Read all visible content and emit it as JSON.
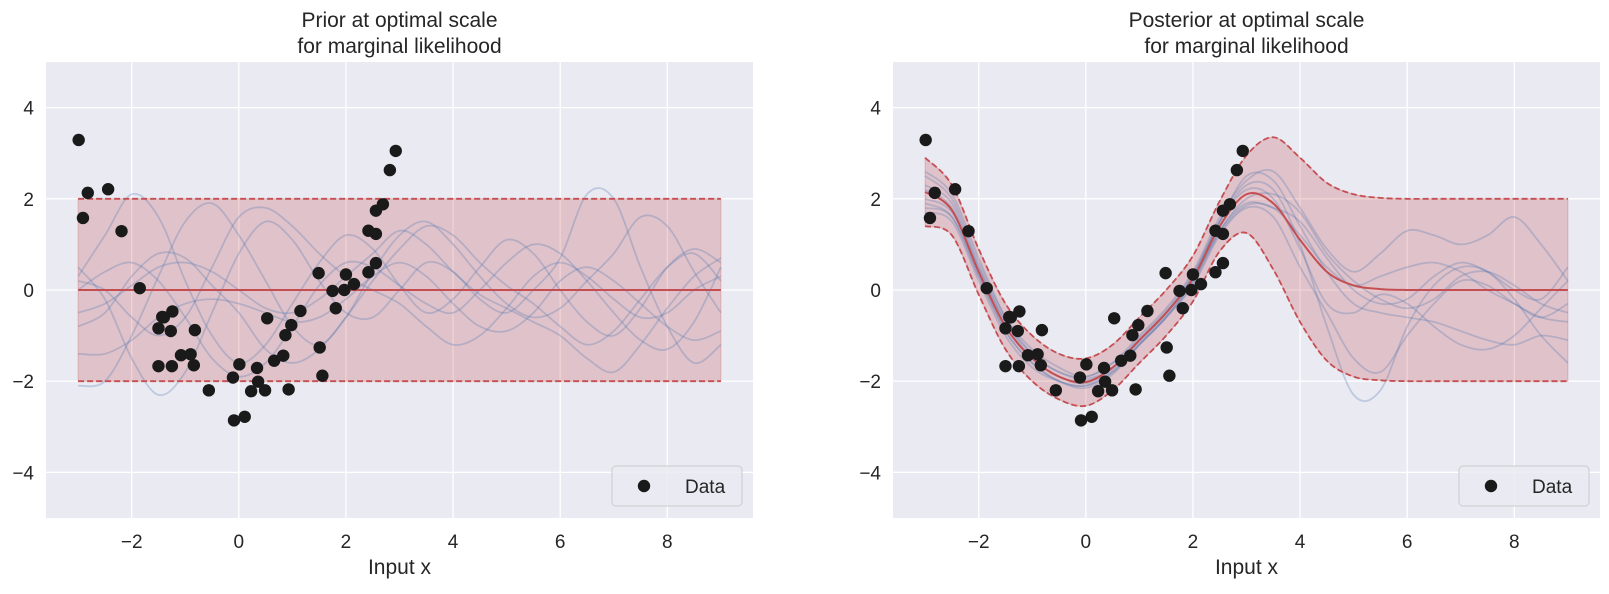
{
  "chart_data": [
    {
      "type": "line",
      "title_lines": [
        "Prior at optimal scale",
        "for marginal likelihood"
      ],
      "xlabel": "Input x",
      "ylabel": "",
      "xlim": [
        -3.6,
        9.6
      ],
      "ylim": [
        -5,
        5
      ],
      "xticks": [
        -2,
        0,
        2,
        4,
        6,
        8
      ],
      "xtick_labels": [
        "−2",
        "0",
        "2",
        "4",
        "6",
        "8"
      ],
      "yticks": [
        -4,
        -2,
        0,
        2,
        4
      ],
      "ytick_labels": [
        "−4",
        "−2",
        "0",
        "2",
        "4"
      ],
      "grid": true,
      "legend": {
        "placement": "lower-right",
        "entries": [
          "Data"
        ]
      },
      "colors": {
        "background": "#eaeaf2",
        "mean": "#c44e52",
        "band": "#c44e52",
        "samples": "#4c72b0",
        "data": "#1a1a1a"
      },
      "grid_x": [
        -3,
        -2.5,
        -2,
        -1.5,
        -1,
        -0.5,
        0,
        0.5,
        1,
        1.5,
        2,
        2.5,
        3,
        3.5,
        4,
        4.5,
        5,
        5.5,
        6,
        6.5,
        7,
        7.5,
        8,
        8.5,
        9
      ],
      "mean": [
        0,
        0,
        0,
        0,
        0,
        0,
        0,
        0,
        0,
        0,
        0,
        0,
        0,
        0,
        0,
        0,
        0,
        0,
        0,
        0,
        0,
        0,
        0,
        0,
        0
      ],
      "upper": [
        2,
        2,
        2,
        2,
        2,
        2,
        2,
        2,
        2,
        2,
        2,
        2,
        2,
        2,
        2,
        2,
        2,
        2,
        2,
        2,
        2,
        2,
        2,
        2,
        2
      ],
      "lower": [
        -2,
        -2,
        -2,
        -2,
        -2,
        -2,
        -2,
        -2,
        -2,
        -2,
        -2,
        -2,
        -2,
        -2,
        -2,
        -2,
        -2,
        -2,
        -2,
        -2,
        -2,
        -2,
        -2,
        -2,
        -2
      ],
      "samples": [
        [
          0.3,
          1.2,
          2.1,
          1.6,
          0.2,
          -1.0,
          -1.6,
          -1.2,
          -0.3,
          0.6,
          1.2,
          0.9,
          0.1,
          -0.5,
          -0.2,
          0.5,
          1.1,
          0.8,
          0.0,
          -0.7,
          -1.0,
          -0.4,
          0.5,
          0.9,
          0.6
        ],
        [
          -2.1,
          -2.0,
          -1.0,
          0.3,
          1.5,
          1.9,
          1.2,
          0.2,
          -0.8,
          -1.2,
          -0.6,
          0.4,
          1.2,
          1.5,
          1.0,
          0.3,
          -0.3,
          -0.6,
          -0.4,
          0.2,
          0.8,
          1.6,
          1.4,
          0.4,
          -0.5
        ],
        [
          0.5,
          -0.2,
          -1.5,
          -2.3,
          -1.8,
          -0.5,
          0.8,
          1.5,
          1.1,
          0.2,
          -0.5,
          -0.6,
          0.0,
          0.6,
          0.4,
          -0.2,
          -0.5,
          0.0,
          0.7,
          2.1,
          2.0,
          0.5,
          -0.8,
          -1.6,
          -1.2
        ],
        [
          -0.5,
          -0.3,
          0.1,
          0.5,
          0.6,
          0.4,
          0.0,
          -0.4,
          -0.5,
          -0.2,
          0.3,
          0.8,
          1.3,
          1.0,
          0.4,
          -0.1,
          -0.4,
          -0.7,
          -1.0,
          -1.5,
          -1.8,
          -1.2,
          -0.4,
          0.3,
          0.7
        ],
        [
          -1.4,
          -1.4,
          -1.1,
          -0.6,
          -0.3,
          -0.2,
          -0.3,
          -0.5,
          -0.7,
          -0.6,
          -0.2,
          0.3,
          0.6,
          0.3,
          -0.3,
          -0.8,
          -0.9,
          -0.5,
          0.2,
          0.5,
          0.2,
          -0.3,
          -0.8,
          -1.1,
          -0.9
        ],
        [
          0.2,
          0.0,
          -0.6,
          -1.0,
          -0.6,
          0.5,
          1.6,
          1.8,
          1.4,
          0.8,
          0.3,
          0.0,
          -0.3,
          -0.8,
          -1.2,
          -1.0,
          -0.4,
          0.3,
          0.6,
          0.3,
          -0.2,
          -0.6,
          -0.5,
          0.0,
          0.3
        ],
        [
          -0.8,
          -0.5,
          0.3,
          0.8,
          0.7,
          0.1,
          -0.5,
          -1.3,
          -1.6,
          -1.3,
          -0.6,
          0.2,
          0.9,
          1.4,
          1.2,
          0.6,
          0.1,
          -0.3,
          -0.8,
          -1.2,
          -0.9,
          -0.2,
          0.5,
          0.8,
          0.2
        ],
        [
          0.0,
          0.4,
          0.6,
          0.2,
          -0.6,
          -1.5,
          -1.9,
          -1.6,
          -0.8,
          0.1,
          0.6,
          0.5,
          0.1,
          -0.3,
          -0.5,
          0.0,
          0.6,
          1.0,
          0.8,
          0.2,
          -0.5,
          -1.1,
          -1.3,
          -0.7,
          0.5
        ]
      ]
    },
    {
      "type": "line",
      "title_lines": [
        "Posterior at optimal scale",
        "for marginal likelihood"
      ],
      "xlabel": "Input x",
      "ylabel": "",
      "xlim": [
        -3.6,
        9.6
      ],
      "ylim": [
        -5,
        5
      ],
      "xticks": [
        -2,
        0,
        2,
        4,
        6,
        8
      ],
      "xtick_labels": [
        "−2",
        "0",
        "2",
        "4",
        "6",
        "8"
      ],
      "yticks": [
        -4,
        -2,
        0,
        2,
        4
      ],
      "ytick_labels": [
        "−4",
        "−2",
        "0",
        "2",
        "4"
      ],
      "grid": true,
      "legend": {
        "placement": "lower-right",
        "entries": [
          "Data"
        ]
      },
      "colors": {
        "background": "#eaeaf2",
        "mean": "#c44e52",
        "band": "#c44e52",
        "samples": "#4c72b0",
        "data": "#1a1a1a"
      },
      "grid_x": [
        -3,
        -2.5,
        -2,
        -1.5,
        -1,
        -0.5,
        0,
        0.5,
        1,
        1.5,
        2,
        2.5,
        3,
        3.5,
        4,
        4.5,
        5,
        5.5,
        6,
        6.5,
        7,
        7.5,
        8,
        8.5,
        9
      ],
      "mean": [
        2.15,
        1.75,
        0.4,
        -0.8,
        -1.5,
        -1.9,
        -2.02,
        -1.7,
        -1.1,
        -0.5,
        0.25,
        1.4,
        2.1,
        1.9,
        1.1,
        0.4,
        0.1,
        0.02,
        0,
        0,
        0,
        0,
        0,
        0,
        0
      ],
      "upper": [
        2.9,
        2.3,
        0.9,
        -0.3,
        -1.0,
        -1.4,
        -1.5,
        -1.2,
        -0.6,
        0.0,
        0.75,
        1.95,
        2.95,
        3.35,
        2.9,
        2.35,
        2.1,
        2.02,
        2,
        2,
        2,
        2,
        2,
        2,
        2
      ],
      "lower": [
        1.4,
        1.2,
        -0.1,
        -1.3,
        -2.0,
        -2.4,
        -2.54,
        -2.2,
        -1.6,
        -1.0,
        -0.25,
        0.85,
        1.25,
        0.45,
        -0.7,
        -1.55,
        -1.9,
        -1.98,
        -2,
        -2,
        -2,
        -2,
        -2,
        -2,
        -2
      ],
      "samples": [
        [
          2.5,
          2.0,
          0.6,
          -0.6,
          -1.3,
          -1.7,
          -1.9,
          -1.6,
          -1.0,
          -0.4,
          0.4,
          1.6,
          2.4,
          2.6,
          1.8,
          0.9,
          0.4,
          0.8,
          1.3,
          1.2,
          1.0,
          1.2,
          1.6,
          1.0,
          0.2
        ],
        [
          1.9,
          1.6,
          0.3,
          -0.9,
          -1.6,
          -2.0,
          -2.1,
          -1.8,
          -1.2,
          -0.6,
          0.1,
          1.2,
          1.8,
          1.6,
          0.5,
          -0.5,
          -1.5,
          -1.8,
          -1.0,
          -0.3,
          0.2,
          0.1,
          -0.3,
          -0.6,
          -0.7
        ],
        [
          2.2,
          1.8,
          0.5,
          -0.7,
          -1.4,
          -1.8,
          -1.9,
          -1.6,
          -1.1,
          -0.5,
          0.3,
          1.5,
          2.3,
          2.2,
          1.0,
          -0.8,
          -2.3,
          -2.2,
          -0.8,
          0.1,
          0.5,
          0.4,
          -0.2,
          -1.0,
          -1.6
        ],
        [
          2.6,
          2.1,
          0.7,
          -0.6,
          -1.4,
          -1.8,
          -1.95,
          -1.7,
          -1.1,
          -0.5,
          0.3,
          1.5,
          2.5,
          2.4,
          1.4,
          0.4,
          -0.3,
          -0.5,
          -0.6,
          -0.7,
          -0.9,
          -1.1,
          -1.2,
          -1.0,
          -1.1
        ],
        [
          1.7,
          1.5,
          0.2,
          -1.0,
          -1.7,
          -2.0,
          -2.1,
          -1.8,
          -1.2,
          -0.6,
          0.2,
          1.3,
          1.9,
          1.8,
          1.5,
          0.7,
          0.0,
          -0.3,
          -0.2,
          0.3,
          0.6,
          0.4,
          0.0,
          -0.2,
          0.5
        ],
        [
          2.0,
          1.7,
          0.4,
          -0.8,
          -1.5,
          -1.9,
          -2.05,
          -1.75,
          -1.15,
          -0.55,
          0.2,
          1.3,
          2.0,
          2.1,
          1.7,
          0.8,
          0.2,
          -0.2,
          -0.4,
          -0.2,
          0.3,
          0.4,
          0.1,
          -0.3,
          -0.5
        ],
        [
          2.3,
          1.9,
          0.5,
          -0.7,
          -1.5,
          -1.9,
          -2.0,
          -1.7,
          -1.05,
          -0.45,
          0.35,
          1.5,
          2.2,
          2.0,
          0.9,
          -0.3,
          -0.5,
          -0.1,
          -0.3,
          -0.8,
          -1.2,
          -1.3,
          -1.0,
          -0.4,
          0.2
        ],
        [
          1.8,
          1.6,
          0.3,
          -0.9,
          -1.6,
          -2.0,
          -2.15,
          -1.85,
          -1.2,
          -0.6,
          0.15,
          1.25,
          1.85,
          1.8,
          1.2,
          0.5,
          0.1,
          0.3,
          0.5,
          0.6,
          0.4,
          0.0,
          -0.3,
          -0.6,
          -0.3
        ]
      ]
    }
  ],
  "data_points": [
    [
      -2.99,
      3.29
    ],
    [
      -2.82,
      2.13
    ],
    [
      -2.44,
      2.21
    ],
    [
      -2.91,
      1.58
    ],
    [
      -2.19,
      1.29
    ],
    [
      -1.85,
      0.04
    ],
    [
      -1.43,
      -0.59
    ],
    [
      -1.4,
      -0.6
    ],
    [
      -1.24,
      -0.47
    ],
    [
      -1.5,
      -0.84
    ],
    [
      -1.27,
      -0.9
    ],
    [
      -0.82,
      -0.88
    ],
    [
      -1.08,
      -1.43
    ],
    [
      -0.9,
      -1.41
    ],
    [
      -1.5,
      -1.67
    ],
    [
      -1.25,
      -1.67
    ],
    [
      -0.84,
      -1.65
    ],
    [
      -0.56,
      -2.2
    ],
    [
      -0.11,
      -1.92
    ],
    [
      0.01,
      -1.63
    ],
    [
      -0.09,
      -2.86
    ],
    [
      0.11,
      -2.78
    ],
    [
      0.23,
      -2.22
    ],
    [
      0.36,
      -2.01
    ],
    [
      0.34,
      -1.71
    ],
    [
      0.49,
      -2.2
    ],
    [
      0.53,
      -0.62
    ],
    [
      0.66,
      -1.55
    ],
    [
      0.83,
      -1.44
    ],
    [
      0.87,
      -0.99
    ],
    [
      0.93,
      -2.18
    ],
    [
      0.98,
      -0.77
    ],
    [
      1.15,
      -0.46
    ],
    [
      1.49,
      0.37
    ],
    [
      1.51,
      -1.26
    ],
    [
      1.56,
      -1.88
    ],
    [
      1.75,
      -0.02
    ],
    [
      1.81,
      -0.4
    ],
    [
      1.97,
      0.0
    ],
    [
      2.0,
      0.34
    ],
    [
      2.15,
      0.13
    ],
    [
      2.42,
      1.3
    ],
    [
      2.42,
      0.39
    ],
    [
      2.56,
      1.23
    ],
    [
      2.56,
      1.74
    ],
    [
      2.56,
      0.59
    ],
    [
      2.69,
      1.88
    ],
    [
      2.82,
      2.63
    ],
    [
      2.93,
      3.05
    ]
  ]
}
